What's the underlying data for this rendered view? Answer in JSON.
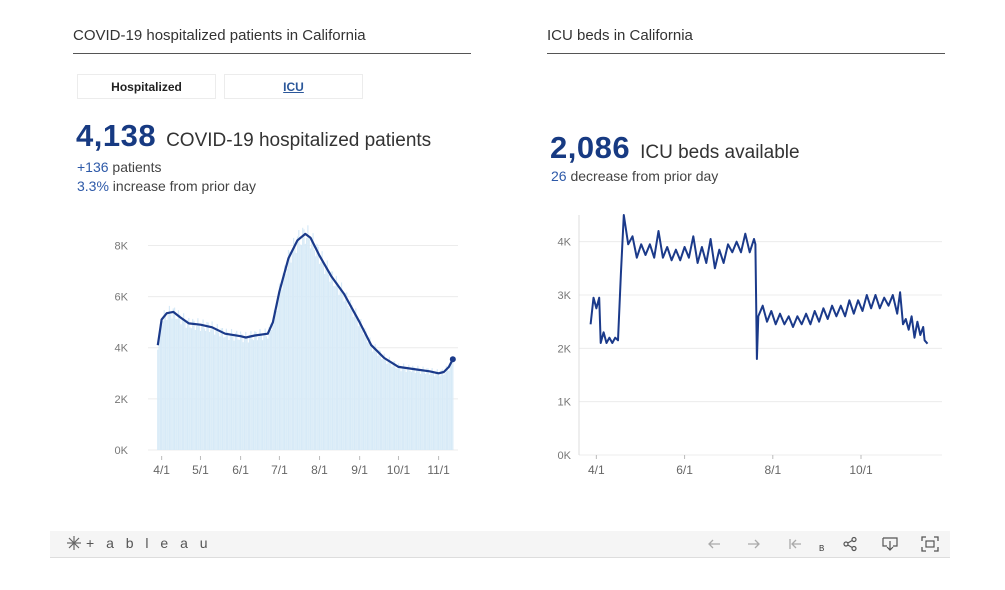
{
  "left": {
    "title": "COVID-19 hospitalized patients in California",
    "tabs": [
      {
        "label": "Hospitalized",
        "active": true
      },
      {
        "label": "ICU",
        "active": false
      }
    ],
    "big_number": "4,138",
    "big_label": "COVID-19 hospitalized patients",
    "line1_value": "+136",
    "line1_text": " patients",
    "line2_value": "3.3%",
    "line2_text": " increase from prior day"
  },
  "right": {
    "title": "ICU beds in California",
    "big_number": "2,086",
    "big_label": "ICU beds available",
    "line1_value": "26",
    "line1_text": " decrease from prior day"
  },
  "toolbar": {
    "logo": "+ a b l e a u",
    "small_label": "B",
    "icons": [
      "undo-icon",
      "redo-icon",
      "revert-icon",
      "share-icon",
      "download-icon",
      "fullscreen-icon"
    ]
  },
  "colors": {
    "line": "#1b3a8a",
    "bars": "#d7eaf7",
    "grid": "#ececec",
    "accent_text": "#2d59a8",
    "headline": "#173a82"
  },
  "chart_data": [
    {
      "type": "area",
      "description": "Daily hospitalized bars with smoothed trend line",
      "x_ticks": [
        "4/1",
        "5/1",
        "6/1",
        "7/1",
        "8/1",
        "9/1",
        "10/1",
        "11/1"
      ],
      "y_ticks": [
        "0K",
        "2K",
        "4K",
        "6K",
        "8K"
      ],
      "ylim": [
        0,
        8800
      ],
      "grid": true,
      "series": [
        {
          "values": [
            {
              "date": "2020-03-29",
              "y": 4100
            },
            {
              "date": "2020-04-01",
              "y": 5100
            },
            {
              "date": "2020-04-05",
              "y": 5350
            },
            {
              "date": "2020-04-10",
              "y": 5400
            },
            {
              "date": "2020-04-15",
              "y": 5200
            },
            {
              "date": "2020-04-22",
              "y": 4950
            },
            {
              "date": "2020-05-01",
              "y": 4900
            },
            {
              "date": "2020-05-10",
              "y": 4800
            },
            {
              "date": "2020-05-20",
              "y": 4550
            },
            {
              "date": "2020-06-01",
              "y": 4450
            },
            {
              "date": "2020-06-05",
              "y": 4400
            },
            {
              "date": "2020-06-12",
              "y": 4480
            },
            {
              "date": "2020-06-22",
              "y": 4550
            },
            {
              "date": "2020-06-26",
              "y": 5000
            },
            {
              "date": "2020-07-01",
              "y": 6200
            },
            {
              "date": "2020-07-08",
              "y": 7500
            },
            {
              "date": "2020-07-15",
              "y": 8200
            },
            {
              "date": "2020-07-21",
              "y": 8450
            },
            {
              "date": "2020-07-25",
              "y": 8300
            },
            {
              "date": "2020-08-01",
              "y": 7600
            },
            {
              "date": "2020-08-10",
              "y": 6800
            },
            {
              "date": "2020-08-20",
              "y": 6100
            },
            {
              "date": "2020-09-01",
              "y": 5000
            },
            {
              "date": "2020-09-10",
              "y": 4100
            },
            {
              "date": "2020-09-20",
              "y": 3600
            },
            {
              "date": "2020-10-01",
              "y": 3250
            },
            {
              "date": "2020-10-15",
              "y": 3150
            },
            {
              "date": "2020-10-25",
              "y": 3080
            },
            {
              "date": "2020-11-01",
              "y": 3000
            },
            {
              "date": "2020-11-05",
              "y": 3050
            },
            {
              "date": "2020-11-09",
              "y": 3250
            },
            {
              "date": "2020-11-12",
              "y": 3550
            }
          ]
        }
      ]
    },
    {
      "type": "line",
      "x_ticks": [
        "4/1",
        "6/1",
        "8/1",
        "10/1"
      ],
      "y_ticks": [
        "0K",
        "1K",
        "2K",
        "3K",
        "4K"
      ],
      "ylim": [
        0,
        4500
      ],
      "grid": true,
      "series": [
        {
          "values": [
            {
              "date": "2020-03-28",
              "y": 2450
            },
            {
              "date": "2020-03-30",
              "y": 2950
            },
            {
              "date": "2020-04-01",
              "y": 2750
            },
            {
              "date": "2020-04-03",
              "y": 2950
            },
            {
              "date": "2020-04-04",
              "y": 2100
            },
            {
              "date": "2020-04-06",
              "y": 2300
            },
            {
              "date": "2020-04-08",
              "y": 2100
            },
            {
              "date": "2020-04-10",
              "y": 2200
            },
            {
              "date": "2020-04-12",
              "y": 2100
            },
            {
              "date": "2020-04-14",
              "y": 2200
            },
            {
              "date": "2020-04-16",
              "y": 2150
            },
            {
              "date": "2020-04-18",
              "y": 3400
            },
            {
              "date": "2020-04-20",
              "y": 4500
            },
            {
              "date": "2020-04-23",
              "y": 3950
            },
            {
              "date": "2020-04-26",
              "y": 4100
            },
            {
              "date": "2020-04-29",
              "y": 3700
            },
            {
              "date": "2020-05-02",
              "y": 3950
            },
            {
              "date": "2020-05-05",
              "y": 3750
            },
            {
              "date": "2020-05-08",
              "y": 3950
            },
            {
              "date": "2020-05-11",
              "y": 3700
            },
            {
              "date": "2020-05-14",
              "y": 4200
            },
            {
              "date": "2020-05-17",
              "y": 3700
            },
            {
              "date": "2020-05-20",
              "y": 3900
            },
            {
              "date": "2020-05-23",
              "y": 3650
            },
            {
              "date": "2020-05-26",
              "y": 3850
            },
            {
              "date": "2020-05-29",
              "y": 3650
            },
            {
              "date": "2020-06-01",
              "y": 3900
            },
            {
              "date": "2020-06-04",
              "y": 3700
            },
            {
              "date": "2020-06-07",
              "y": 4100
            },
            {
              "date": "2020-06-10",
              "y": 3600
            },
            {
              "date": "2020-06-13",
              "y": 3900
            },
            {
              "date": "2020-06-16",
              "y": 3600
            },
            {
              "date": "2020-06-19",
              "y": 4050
            },
            {
              "date": "2020-06-22",
              "y": 3500
            },
            {
              "date": "2020-06-25",
              "y": 3850
            },
            {
              "date": "2020-06-28",
              "y": 3600
            },
            {
              "date": "2020-07-01",
              "y": 3950
            },
            {
              "date": "2020-07-04",
              "y": 3800
            },
            {
              "date": "2020-07-07",
              "y": 4000
            },
            {
              "date": "2020-07-10",
              "y": 3800
            },
            {
              "date": "2020-07-13",
              "y": 4150
            },
            {
              "date": "2020-07-16",
              "y": 3800
            },
            {
              "date": "2020-07-19",
              "y": 4050
            },
            {
              "date": "2020-07-20",
              "y": 3950
            },
            {
              "date": "2020-07-21",
              "y": 1800
            },
            {
              "date": "2020-07-22",
              "y": 2600
            },
            {
              "date": "2020-07-25",
              "y": 2800
            },
            {
              "date": "2020-07-28",
              "y": 2500
            },
            {
              "date": "2020-07-31",
              "y": 2700
            },
            {
              "date": "2020-08-03",
              "y": 2450
            },
            {
              "date": "2020-08-06",
              "y": 2650
            },
            {
              "date": "2020-08-09",
              "y": 2450
            },
            {
              "date": "2020-08-12",
              "y": 2600
            },
            {
              "date": "2020-08-15",
              "y": 2400
            },
            {
              "date": "2020-08-18",
              "y": 2600
            },
            {
              "date": "2020-08-21",
              "y": 2450
            },
            {
              "date": "2020-08-24",
              "y": 2650
            },
            {
              "date": "2020-08-27",
              "y": 2450
            },
            {
              "date": "2020-08-30",
              "y": 2700
            },
            {
              "date": "2020-09-02",
              "y": 2500
            },
            {
              "date": "2020-09-05",
              "y": 2750
            },
            {
              "date": "2020-09-08",
              "y": 2550
            },
            {
              "date": "2020-09-11",
              "y": 2800
            },
            {
              "date": "2020-09-14",
              "y": 2600
            },
            {
              "date": "2020-09-17",
              "y": 2800
            },
            {
              "date": "2020-09-20",
              "y": 2600
            },
            {
              "date": "2020-09-23",
              "y": 2900
            },
            {
              "date": "2020-09-26",
              "y": 2650
            },
            {
              "date": "2020-09-29",
              "y": 2900
            },
            {
              "date": "2020-10-02",
              "y": 2700
            },
            {
              "date": "2020-10-05",
              "y": 3000
            },
            {
              "date": "2020-10-08",
              "y": 2750
            },
            {
              "date": "2020-10-11",
              "y": 3000
            },
            {
              "date": "2020-10-14",
              "y": 2750
            },
            {
              "date": "2020-10-17",
              "y": 2950
            },
            {
              "date": "2020-10-20",
              "y": 2800
            },
            {
              "date": "2020-10-23",
              "y": 3000
            },
            {
              "date": "2020-10-26",
              "y": 2650
            },
            {
              "date": "2020-10-28",
              "y": 3050
            },
            {
              "date": "2020-10-30",
              "y": 2450
            },
            {
              "date": "2020-11-01",
              "y": 2550
            },
            {
              "date": "2020-11-03",
              "y": 2350
            },
            {
              "date": "2020-11-05",
              "y": 2600
            },
            {
              "date": "2020-11-07",
              "y": 2200
            },
            {
              "date": "2020-11-09",
              "y": 2500
            },
            {
              "date": "2020-11-11",
              "y": 2250
            },
            {
              "date": "2020-11-13",
              "y": 2400
            },
            {
              "date": "2020-11-14",
              "y": 2150
            },
            {
              "date": "2020-11-16",
              "y": 2086
            }
          ]
        }
      ]
    }
  ]
}
